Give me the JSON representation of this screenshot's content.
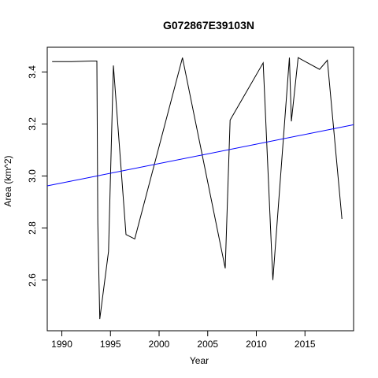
{
  "chart_data": {
    "type": "line",
    "title": "G072867E39103N",
    "xlabel": "Year",
    "ylabel": "Area (km^2)",
    "xlim": [
      1988.5,
      2020.0
    ],
    "ylim": [
      2.405,
      3.495
    ],
    "x_ticks": [
      1990,
      1995,
      2000,
      2005,
      2010,
      2015
    ],
    "y_ticks": [
      2.6,
      2.8,
      3.0,
      3.2,
      3.4
    ],
    "grid": false,
    "series": [
      {
        "color": "#000000",
        "points": [
          [
            1989.0,
            3.44
          ],
          [
            1991.0,
            3.44
          ],
          [
            1993.0,
            3.442
          ],
          [
            1993.6,
            3.442
          ],
          [
            1993.7,
            2.82
          ],
          [
            1993.9,
            2.45
          ],
          [
            1994.8,
            2.71
          ],
          [
            1995.3,
            3.425
          ],
          [
            1996.6,
            2.775
          ],
          [
            1997.5,
            2.758
          ],
          [
            2002.4,
            3.455
          ],
          [
            2006.8,
            2.645
          ],
          [
            2007.3,
            3.215
          ],
          [
            2010.7,
            3.435
          ],
          [
            2011.7,
            2.6
          ],
          [
            2013.4,
            3.455
          ],
          [
            2013.6,
            3.21
          ],
          [
            2014.3,
            3.455
          ],
          [
            2016.5,
            3.41
          ],
          [
            2017.3,
            3.445
          ],
          [
            2018.8,
            2.835
          ]
        ]
      }
    ],
    "trend_line": {
      "color": "#0000ff",
      "points": [
        [
          1988.5,
          2.962
        ],
        [
          2020.0,
          3.197
        ]
      ]
    }
  }
}
